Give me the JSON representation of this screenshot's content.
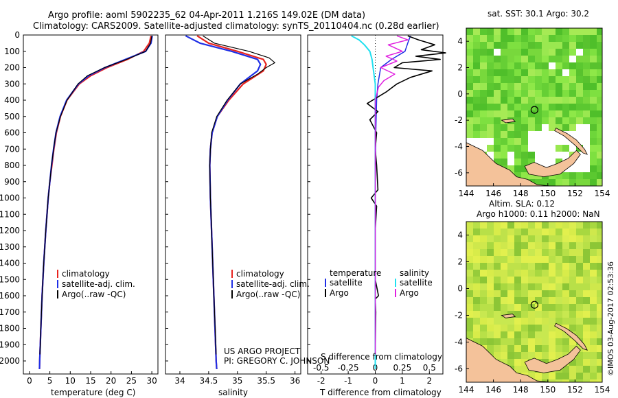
{
  "title": {
    "line1": "Argo profile: aoml 5902235_62 04-Apr-2011 1.216S 149.02E (DM data)",
    "line2": "Climatology: CARS2009. Satellite-adjusted climatology: synTS_20110404.nc (0.28d earlier)"
  },
  "credit": {
    "project": "US ARGO PROJECT",
    "pi": "PI: GREGORY C. JOHNSON"
  },
  "stamp": "©IMOS 03-Aug-2017 02:53:36",
  "colors": {
    "climatology": "#e8231e",
    "satellite": "#1f2fe6",
    "argo": "#000000",
    "sal_sat": "#20e0f0",
    "sal_argo": "#e020e0",
    "land": "#f4c29a",
    "missing": "#ffffff"
  },
  "depth_axis": {
    "ticks": [
      0,
      100,
      200,
      300,
      400,
      500,
      600,
      700,
      800,
      900,
      1000,
      1100,
      1200,
      1300,
      1400,
      1500,
      1600,
      1700,
      1800,
      1900,
      2000
    ],
    "range": [
      0,
      2080
    ]
  },
  "chart_data": [
    {
      "type": "line",
      "id": "temperature",
      "xlabel": "temperature (deg C)",
      "xlim": [
        -1.5,
        31.5
      ],
      "xticks": [
        0,
        5,
        10,
        15,
        20,
        25,
        30
      ],
      "legend": [
        "climatology",
        "satellite-adj. clim.",
        "Argo(..raw -QC)"
      ],
      "series": [
        {
          "name": "climatology",
          "depth": [
            5,
            50,
            100,
            150,
            200,
            250,
            300,
            400,
            500,
            600,
            700,
            800,
            900,
            1000,
            1200,
            1400,
            1600,
            1800,
            2000,
            2050
          ],
          "values": [
            29.8,
            29.4,
            28.0,
            24.0,
            19.0,
            15.0,
            12.2,
            9.2,
            7.6,
            6.6,
            6.0,
            5.5,
            5.0,
            4.6,
            4.0,
            3.5,
            3.1,
            2.8,
            2.5,
            2.45
          ]
        },
        {
          "name": "satellite-adj. clim.",
          "depth": [
            5,
            50,
            100,
            150,
            200,
            250,
            300,
            400,
            500,
            600,
            700,
            800,
            900,
            1000,
            1200,
            1400,
            1600,
            1800,
            2000,
            2050
          ],
          "values": [
            30.1,
            29.8,
            28.5,
            23.5,
            18.5,
            14.5,
            12.0,
            9.1,
            7.5,
            6.5,
            5.9,
            5.4,
            5.0,
            4.6,
            4.0,
            3.5,
            3.1,
            2.8,
            2.5,
            2.45
          ]
        },
        {
          "name": "Argo(..raw -QC)",
          "depth": [
            5,
            50,
            100,
            150,
            200,
            250,
            300,
            400,
            500,
            600,
            700,
            800,
            900,
            1000,
            1200,
            1400,
            1600,
            1800,
            1960
          ],
          "values": [
            30.0,
            29.7,
            28.5,
            23.8,
            18.4,
            14.2,
            11.9,
            9.2,
            7.6,
            6.5,
            5.9,
            5.4,
            5.0,
            4.6,
            4.0,
            3.5,
            3.1,
            2.8,
            2.55
          ]
        }
      ]
    },
    {
      "type": "line",
      "id": "salinity",
      "xlabel": "salinity",
      "xlim": [
        33.75,
        36.1
      ],
      "xticks": [
        34,
        34.5,
        35,
        35.5,
        36
      ],
      "legend": [
        "climatology",
        "satellite-adj. clim.",
        "Argo(..raw -QC)"
      ],
      "series": [
        {
          "name": "climatology",
          "depth": [
            5,
            50,
            100,
            150,
            180,
            220,
            300,
            400,
            500,
            600,
            700,
            800,
            1000,
            1200,
            1500,
            2000,
            2050
          ],
          "values": [
            34.3,
            34.5,
            35.0,
            35.45,
            35.5,
            35.45,
            35.1,
            34.85,
            34.65,
            34.56,
            34.53,
            34.52,
            34.53,
            34.55,
            34.58,
            34.63,
            34.64
          ]
        },
        {
          "name": "satellite-adj. clim.",
          "depth": [
            5,
            50,
            100,
            150,
            180,
            220,
            300,
            400,
            500,
            600,
            700,
            800,
            1000,
            1200,
            1500,
            2000,
            2050
          ],
          "values": [
            34.1,
            34.35,
            34.9,
            35.35,
            35.4,
            35.35,
            35.05,
            34.83,
            34.65,
            34.56,
            34.53,
            34.52,
            34.53,
            34.55,
            34.58,
            34.63,
            34.64
          ]
        },
        {
          "name": "Argo(..raw -QC)",
          "depth": [
            5,
            50,
            100,
            140,
            170,
            200,
            240,
            300,
            400,
            500,
            600,
            700,
            800,
            1000,
            1200,
            1500,
            1960
          ],
          "values": [
            34.4,
            34.6,
            35.2,
            35.55,
            35.65,
            35.5,
            35.35,
            35.05,
            34.82,
            34.64,
            34.55,
            34.53,
            34.52,
            34.53,
            34.55,
            34.58,
            34.63
          ]
        }
      ]
    },
    {
      "type": "line",
      "id": "differences",
      "xlabel": "T difference from climatology",
      "xlabel2": "S difference from climatology",
      "xlim": [
        -2.5,
        2.5
      ],
      "xticks": [
        -2,
        -1,
        0,
        1,
        2
      ],
      "xticks_s": [
        -0.5,
        -0.25,
        0,
        0.25,
        0.5
      ],
      "xlim_s": [
        -0.625,
        0.625
      ],
      "legend_left_title": "temperature",
      "legend_right_title": "salinity",
      "legend_left": [
        "satellite",
        "Argo"
      ],
      "legend_right": [
        "satellite",
        "Argo"
      ],
      "series": [
        {
          "name": "T satellite",
          "depth": [
            5,
            50,
            100,
            150,
            200,
            300,
            400,
            600,
            1000,
            2050
          ],
          "values": [
            1.3,
            1.2,
            1.1,
            0.6,
            0.2,
            0.1,
            0.05,
            0.02,
            0.0,
            0.0
          ]
        },
        {
          "name": "T Argo",
          "depth": [
            5,
            30,
            60,
            90,
            110,
            130,
            150,
            170,
            200,
            220,
            260,
            300,
            350,
            420,
            470,
            520,
            600,
            700,
            800,
            950,
            1000,
            1050,
            1200,
            1500,
            1600,
            1620,
            1700,
            1960
          ],
          "values": [
            1.2,
            1.6,
            2.2,
            1.7,
            2.6,
            1.5,
            2.4,
            1.0,
            0.7,
            2.1,
            1.3,
            0.8,
            0.4,
            -0.3,
            0.1,
            -0.2,
            0.05,
            0.0,
            0.05,
            0.1,
            -0.15,
            0.05,
            0.0,
            0.0,
            0.12,
            0.0,
            0.02,
            0.0
          ]
        },
        {
          "name": "S satellite",
          "depth": [
            5,
            30,
            60,
            100,
            150,
            200,
            250,
            300,
            400,
            500,
            700,
            1000,
            1500,
            2050
          ],
          "values": [
            -0.22,
            -0.15,
            -0.1,
            -0.05,
            -0.03,
            -0.02,
            -0.01,
            0.0,
            0.0,
            0.0,
            0.0,
            0.0,
            0.0,
            0.0
          ]
        },
        {
          "name": "S Argo",
          "depth": [
            5,
            30,
            60,
            100,
            130,
            160,
            200,
            240,
            280,
            320,
            400,
            500,
            700,
            1000,
            1600,
            1960
          ],
          "values": [
            0.2,
            0.3,
            0.12,
            0.25,
            0.1,
            0.2,
            0.05,
            0.18,
            0.08,
            0.03,
            0.0,
            0.0,
            0.0,
            0.0,
            0.0,
            0.0
          ]
        }
      ]
    },
    {
      "type": "heatmap",
      "id": "sst_map",
      "title": "sat. SST: 30.1  Argo: 30.2",
      "xlim": [
        144,
        154
      ],
      "ylim": [
        -7,
        5
      ],
      "xticks": [
        144,
        146,
        148,
        150,
        152,
        154
      ],
      "yticks": [
        -6,
        -4,
        -2,
        0,
        2,
        4
      ],
      "float_position": [
        149.02,
        -1.216
      ]
    },
    {
      "type": "heatmap",
      "id": "sla_map",
      "title": "Altim. SLA: 0.12",
      "title2": "Argo h1000: 0.11  h2000: NaN",
      "xlim": [
        144,
        154
      ],
      "ylim": [
        -7,
        5
      ],
      "xticks": [
        144,
        146,
        148,
        150,
        152,
        154
      ],
      "yticks": [
        -6,
        -4,
        -2,
        0,
        2,
        4
      ],
      "float_position": [
        149.02,
        -1.216
      ]
    }
  ]
}
